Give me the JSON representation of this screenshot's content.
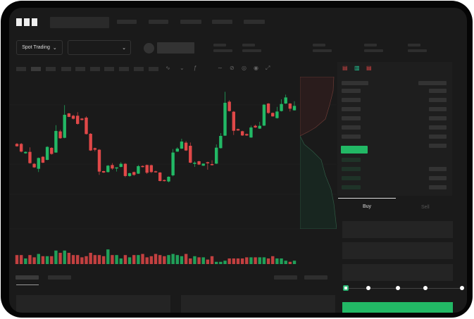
{
  "brand": {
    "logo": "OKX"
  },
  "market": {
    "mode_dropdown": "Spot Trading",
    "pair_dropdown": ""
  },
  "order_book": {
    "tabs": [
      "order-book-both-icon",
      "order-book-bids-icon",
      "order-book-asks-icon"
    ]
  },
  "trade_panel": {
    "tabs": [
      "Buy",
      "Sell"
    ],
    "active_tab": "Buy",
    "slider_percent": 0,
    "submit_label": ""
  },
  "colors": {
    "up": "#22b865",
    "down": "#e04848",
    "background": "#1a1a1a"
  },
  "chart_data": {
    "type": "candlestick",
    "candles": [
      [
        42.5,
        43.5,
        39.5,
        40
      ],
      [
        42.5,
        43.5,
        33.5,
        34.3
      ],
      [
        32.5,
        34.5,
        32,
        34
      ],
      [
        34,
        38.8,
        21.5,
        22
      ],
      [
        21.3,
        22,
        17,
        17.5
      ],
      [
        16,
        28,
        12.5,
        27.5
      ],
      [
        28.8,
        29.5,
        22,
        22.5
      ],
      [
        25.5,
        40,
        25,
        39.3
      ],
      [
        38.3,
        39,
        31,
        31.8
      ],
      [
        33.3,
        62.5,
        33,
        56.3
      ],
      [
        55.8,
        57.5,
        48,
        48.5
      ],
      [
        49,
        83.8,
        48.5,
        73.5
      ],
      [
        75,
        75.5,
        71,
        71.3
      ],
      [
        72.5,
        73.5,
        68.5,
        69.3
      ],
      [
        72.5,
        76.3,
        63,
        63.8
      ],
      [
        69.5,
        70,
        67.5,
        68
      ],
      [
        70.5,
        72,
        52.5,
        53
      ],
      [
        53.3,
        54,
        35,
        35.5
      ],
      [
        38,
        38.5,
        34.5,
        36.3
      ],
      [
        36.3,
        37,
        9.5,
        13
      ],
      [
        13.5,
        14,
        11.5,
        12
      ],
      [
        12.5,
        20,
        12,
        19.3
      ],
      [
        20,
        22,
        15,
        16.3
      ],
      [
        16.3,
        17.5,
        13,
        17.5
      ],
      [
        18,
        23,
        17.5,
        21.3
      ],
      [
        21.3,
        22,
        7,
        8.3
      ],
      [
        8.3,
        11.8,
        7.5,
        11.3
      ],
      [
        12.5,
        13,
        8.5,
        9.5
      ],
      [
        10.8,
        20,
        10.5,
        18.8
      ],
      [
        19,
        19.5,
        17.5,
        17.8
      ],
      [
        20,
        20.5,
        10.5,
        11.8
      ],
      [
        19.8,
        20.5,
        11.5,
        12.5
      ],
      [
        13.3,
        14,
        12,
        12.5
      ],
      [
        12,
        12.5,
        2.5,
        3
      ],
      [
        4,
        4.5,
        2.5,
        3
      ],
      [
        2.5,
        8,
        1.5,
        7.5
      ],
      [
        9,
        37,
        8,
        33.3
      ],
      [
        34.3,
        39,
        34,
        37.5
      ],
      [
        37.5,
        48,
        37,
        45
      ],
      [
        43.8,
        45.5,
        35,
        35.5
      ],
      [
        40.5,
        44,
        22,
        22.5
      ],
      [
        21.3,
        24,
        18,
        22.5
      ],
      [
        24,
        24.5,
        20,
        20.5
      ],
      [
        19.3,
        21.5,
        19,
        21.5
      ],
      [
        23,
        23.5,
        15,
        21.8
      ],
      [
        21,
        25,
        19.5,
        20
      ],
      [
        21.5,
        42,
        21,
        38.5
      ],
      [
        38,
        54,
        37.5,
        51
      ],
      [
        51.3,
        98,
        51,
        86.3
      ],
      [
        87.5,
        89,
        77,
        77.5
      ],
      [
        76.8,
        77.5,
        52,
        56.5
      ],
      [
        58.3,
        58.8,
        56.5,
        56.8
      ],
      [
        56,
        56.5,
        51,
        51.5
      ],
      [
        53,
        53.5,
        51,
        51.5
      ],
      [
        49.3,
        62,
        49,
        60
      ],
      [
        61.8,
        63,
        59.5,
        60
      ],
      [
        58.8,
        66,
        58.5,
        61.8
      ],
      [
        62,
        85,
        61.5,
        84.3
      ],
      [
        85.5,
        86,
        74.5,
        75.5
      ],
      [
        75.5,
        76,
        71.5,
        71.8
      ],
      [
        70,
        82,
        69.5,
        77
      ],
      [
        77.5,
        90,
        77,
        85
      ],
      [
        85.5,
        95,
        85,
        92
      ],
      [
        85.5,
        86,
        77,
        80
      ],
      [
        78.3,
        88,
        78,
        83
      ]
    ],
    "volume": [
      4,
      4,
      2.5,
      4,
      3,
      4.5,
      3.5,
      3.5,
      3.5,
      6,
      5,
      6,
      5,
      4,
      4,
      3,
      3.5,
      5,
      4,
      4,
      3.5,
      6.5,
      4,
      4,
      2.5,
      4,
      3,
      4,
      4,
      4.5,
      3,
      3.5,
      4.5,
      4,
      3.5,
      4,
      4.5,
      4,
      3.5,
      4.5,
      2.5,
      3.5,
      3,
      3,
      2,
      3.5,
      1,
      1,
      1.5,
      2.5,
      2.5,
      2.5,
      2.5,
      3,
      3,
      3,
      3,
      3,
      2.5,
      3.5,
      2.5,
      2.5,
      1.5,
      1,
      1.5
    ],
    "price_range": [
      0,
      100
    ],
    "grid": true
  }
}
